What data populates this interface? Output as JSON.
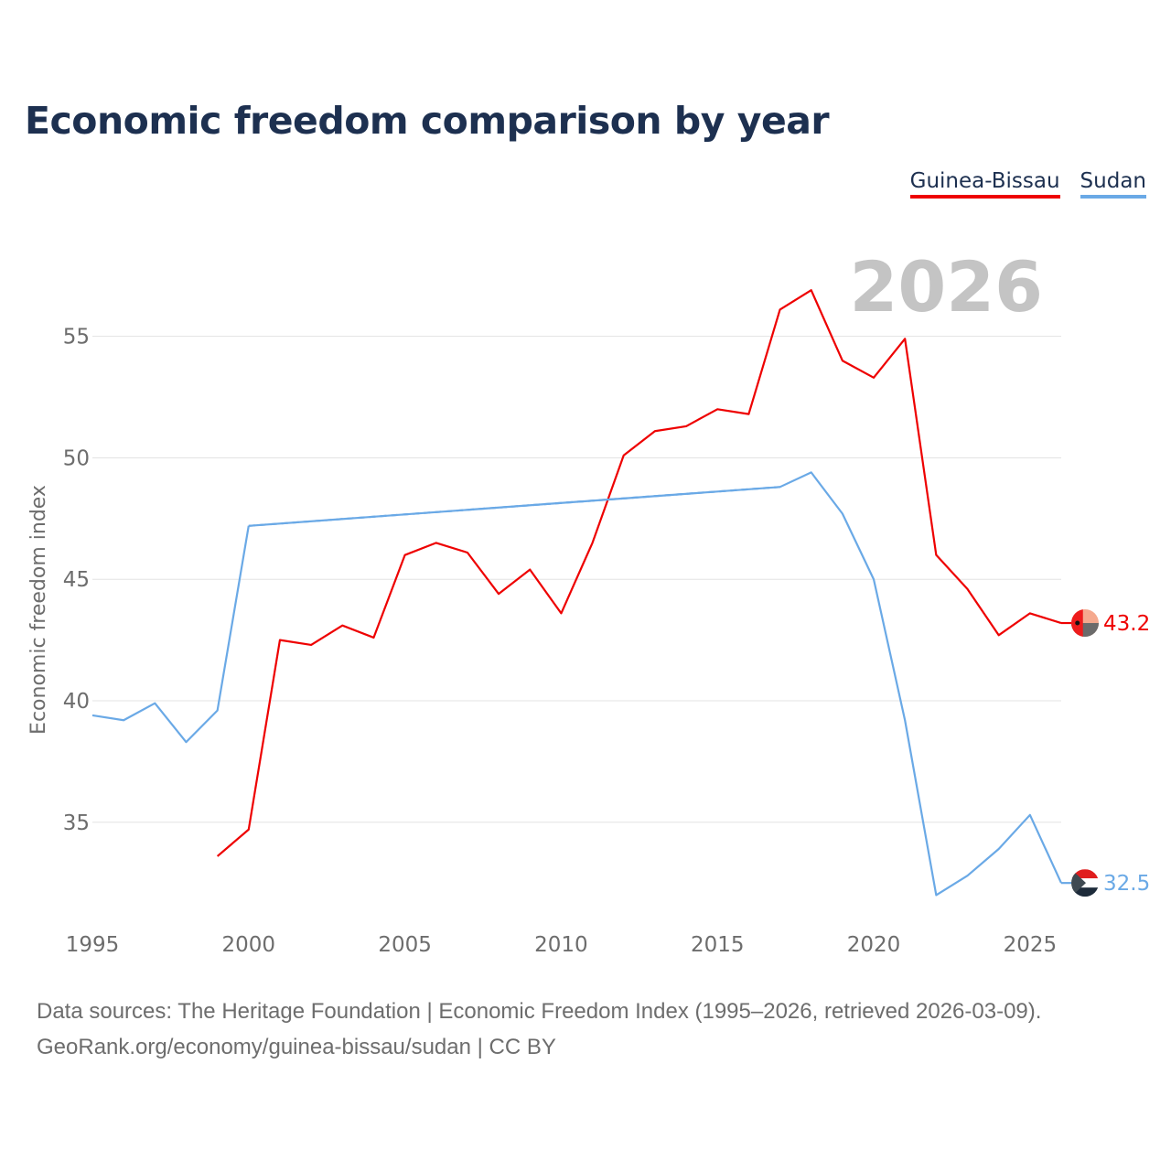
{
  "title": "Economic freedom comparison by year",
  "legend": {
    "guinea_bissau": "Guinea-Bissau",
    "sudan": "Sudan"
  },
  "year_label": "2026",
  "footer": {
    "line1": "Data sources: The Heritage Foundation | Economic Freedom Index (1995–2026, retrieved 2026-03-09).",
    "line2": "GeoRank.org/economy/guinea-bissau/sudan | CC BY"
  },
  "colors": {
    "guinea_bissau": "#ee0000",
    "sudan": "#6aa9e6",
    "title": "#1d3050",
    "grid": "#e3e3e3",
    "axis_text": "#6d6d6d",
    "year": "#c4c4c4"
  },
  "chart_data": {
    "type": "line",
    "title": "Economic freedom comparison by year",
    "xlabel": "",
    "ylabel": "Economic freedom index",
    "xlim": [
      1995,
      2026
    ],
    "ylim": [
      31,
      58
    ],
    "x_ticks": [
      1995,
      2000,
      2005,
      2010,
      2015,
      2020,
      2025
    ],
    "y_ticks": [
      35,
      40,
      45,
      50,
      55
    ],
    "grid": true,
    "legend_position": "top-right",
    "series": [
      {
        "name": "Guinea-Bissau",
        "color": "#ee0000",
        "end_label": "43.2",
        "points": [
          [
            1999,
            33.6
          ],
          [
            2000,
            34.7
          ],
          [
            2001,
            42.5
          ],
          [
            2002,
            42.3
          ],
          [
            2003,
            43.1
          ],
          [
            2004,
            42.6
          ],
          [
            2005,
            46.0
          ],
          [
            2006,
            46.5
          ],
          [
            2007,
            46.1
          ],
          [
            2008,
            44.4
          ],
          [
            2009,
            45.4
          ],
          [
            2010,
            43.6
          ],
          [
            2011,
            46.5
          ],
          [
            2012,
            50.1
          ],
          [
            2013,
            51.1
          ],
          [
            2014,
            51.3
          ],
          [
            2015,
            52.0
          ],
          [
            2016,
            51.8
          ],
          [
            2017,
            56.1
          ],
          [
            2018,
            56.9
          ],
          [
            2019,
            54.0
          ],
          [
            2020,
            53.3
          ],
          [
            2021,
            54.9
          ],
          [
            2022,
            46.0
          ],
          [
            2023,
            44.6
          ],
          [
            2024,
            42.7
          ],
          [
            2025,
            43.6
          ],
          [
            2026,
            43.2
          ]
        ]
      },
      {
        "name": "Sudan",
        "color": "#6aa9e6",
        "end_label": "32.5",
        "points": [
          [
            1995,
            39.4
          ],
          [
            1996,
            39.2
          ],
          [
            1997,
            39.9
          ],
          [
            1998,
            38.3
          ],
          [
            1999,
            39.6
          ],
          [
            2000,
            47.2
          ],
          [
            2017,
            48.8
          ],
          [
            2018,
            49.4
          ],
          [
            2019,
            47.7
          ],
          [
            2020,
            45.0
          ],
          [
            2021,
            39.2
          ],
          [
            2022,
            32.0
          ],
          [
            2023,
            32.8
          ],
          [
            2024,
            33.9
          ],
          [
            2025,
            35.3
          ],
          [
            2026,
            32.5
          ]
        ],
        "gaps": [
          [
            2000,
            2017
          ]
        ]
      }
    ]
  }
}
